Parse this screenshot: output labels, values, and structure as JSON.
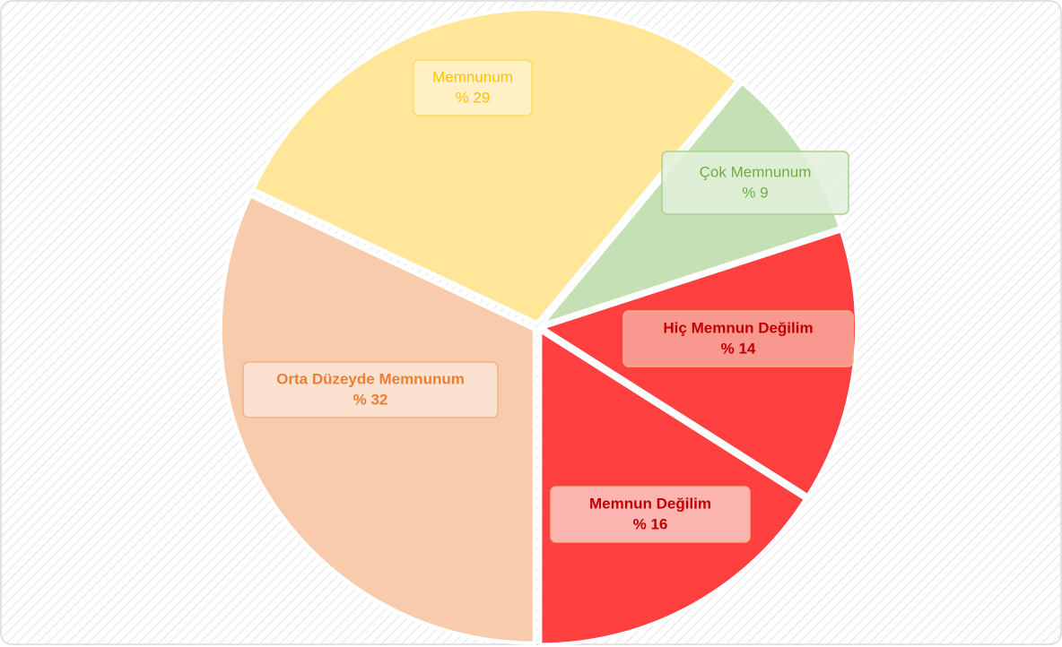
{
  "chart_data": {
    "type": "pie",
    "categories": [
      "Orta Düzeyde Memnunum",
      "Memnunum",
      "Çok Memnunum",
      "Hiç Memnun Değilim",
      "Memnun Değilim"
    ],
    "values": [
      32,
      29,
      9,
      14,
      16
    ],
    "value_labels": [
      "% 32",
      "% 29",
      "% 9",
      "% 14",
      "% 16"
    ],
    "colors": [
      "#f8cbad",
      "#ffe699",
      "#c5e0b4",
      "#ff4040",
      "#ff4040"
    ]
  }
}
